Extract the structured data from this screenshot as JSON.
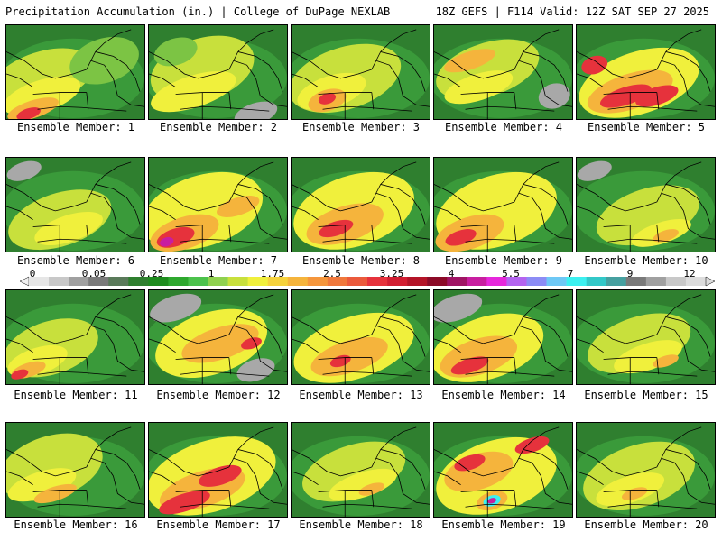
{
  "header": {
    "title_left": "Precipitation Accumulation (in.) | College of DuPage NEXLAB",
    "title_right": "18Z GEFS | F114 Valid: 12Z SAT SEP 27 2025"
  },
  "members": [
    {
      "label": "Ensemble Member: 1"
    },
    {
      "label": "Ensemble Member: 2"
    },
    {
      "label": "Ensemble Member: 3"
    },
    {
      "label": "Ensemble Member: 4"
    },
    {
      "label": "Ensemble Member: 5"
    },
    {
      "label": "Ensemble Member: 6"
    },
    {
      "label": "Ensemble Member: 7"
    },
    {
      "label": "Ensemble Member: 8"
    },
    {
      "label": "Ensemble Member: 9"
    },
    {
      "label": "Ensemble Member: 10"
    },
    {
      "label": "Ensemble Member: 11"
    },
    {
      "label": "Ensemble Member: 12"
    },
    {
      "label": "Ensemble Member: 13"
    },
    {
      "label": "Ensemble Member: 14"
    },
    {
      "label": "Ensemble Member: 15"
    },
    {
      "label": "Ensemble Member: 16"
    },
    {
      "label": "Ensemble Member: 17"
    },
    {
      "label": "Ensemble Member: 18"
    },
    {
      "label": "Ensemble Member: 19"
    },
    {
      "label": "Ensemble Member: 20"
    }
  ],
  "colorbar": {
    "labels": [
      "0",
      "0.05",
      "0.25",
      "1",
      "1.75",
      "2.5",
      "3.25",
      "4",
      "5.5",
      "7",
      "9",
      "12"
    ],
    "colors": [
      "#e6e6e6",
      "#c8c8c8",
      "#a0a0a0",
      "#7a7a7a",
      "#5a7a5a",
      "#2f7f2f",
      "#1e8c1e",
      "#2ea82e",
      "#4cc24c",
      "#8fd14f",
      "#c8e03c",
      "#f0f03c",
      "#f5d23c",
      "#f5b43c",
      "#f5963c",
      "#f0783c",
      "#eb5a3c",
      "#e6323c",
      "#d21e32",
      "#b41428",
      "#8c0a28",
      "#a01464",
      "#c81ea0",
      "#e628dc",
      "#b464f0",
      "#8c8cf5",
      "#6ec8f5",
      "#3cf0f0",
      "#32c8c8",
      "#46a0a0",
      "#7a7a7a",
      "#a0a0a0",
      "#c8c8c8",
      "#dcdcdc"
    ]
  },
  "palette": {
    "dark_green": "#2f7f2f",
    "green": "#3a9a3a",
    "light_green": "#7cc444",
    "yellow_green": "#c8e03c",
    "yellow": "#f0f03c",
    "orange": "#f5b43c",
    "red": "#e6323c",
    "gray": "#a8a8a8",
    "cyan": "#3cf0f0",
    "magenta": "#c81ea0"
  }
}
